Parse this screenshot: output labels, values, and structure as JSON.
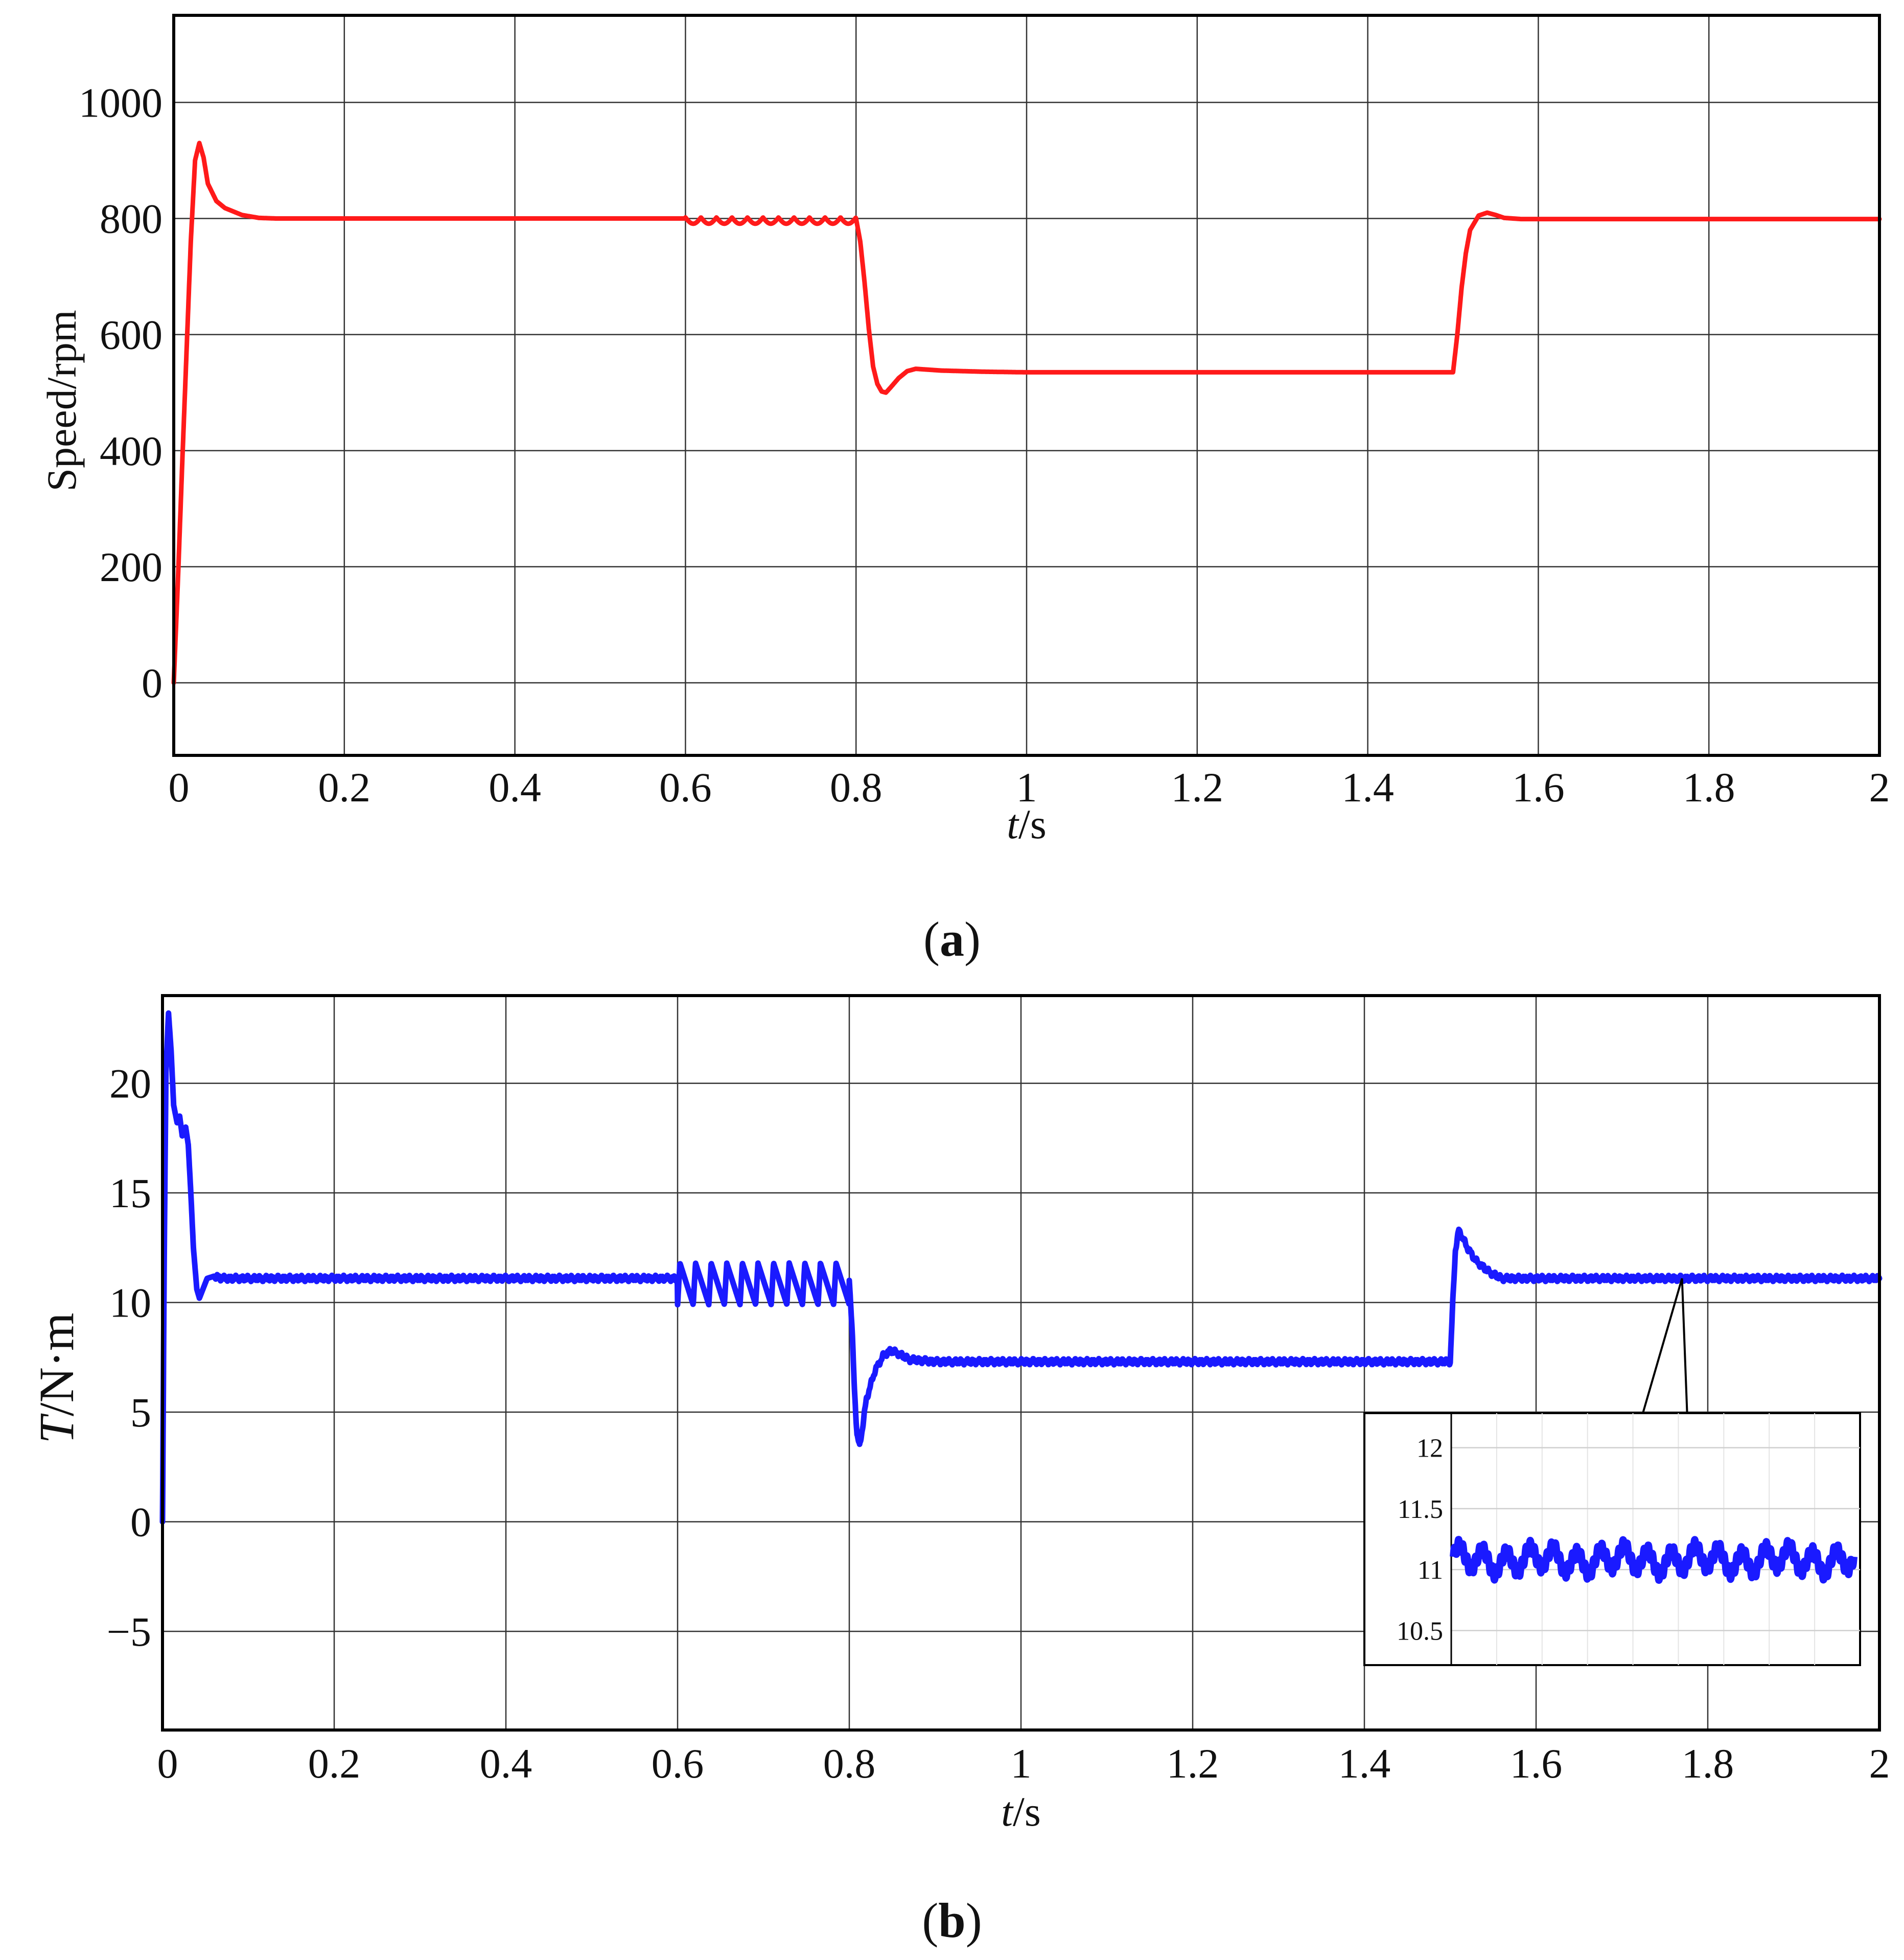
{
  "chart_data": [
    {
      "panel": "a",
      "caption": {
        "open": "(",
        "letter": "a",
        "close": ")"
      },
      "type": "line",
      "xlabel": {
        "italic": "t",
        "rest": "/s"
      },
      "ylabel": "Speed/rpm",
      "xlim": [
        0,
        2
      ],
      "ylim": [
        -125,
        1150
      ],
      "x_ticks": [
        0,
        0.2,
        0.4,
        0.6,
        0.8,
        1,
        1.2,
        1.4,
        1.6,
        1.8,
        2
      ],
      "x_tick_labels": [
        "0",
        "0.2",
        "0.4",
        "0.6",
        "0.8",
        "1",
        "1.2",
        "1.4",
        "1.6",
        "1.8",
        "2"
      ],
      "y_ticks": [
        0,
        200,
        400,
        600,
        800,
        1000
      ],
      "y_tick_labels": [
        "0",
        "200",
        "400",
        "600",
        "800",
        "1000"
      ],
      "grid": true,
      "series": [
        {
          "color": "#ff1a1a",
          "points": [
            [
              0,
              0
            ],
            [
              0.005,
              180
            ],
            [
              0.01,
              380
            ],
            [
              0.015,
              570
            ],
            [
              0.02,
              760
            ],
            [
              0.025,
              900
            ],
            [
              0.03,
              930
            ],
            [
              0.035,
              905
            ],
            [
              0.04,
              860
            ],
            [
              0.05,
              830
            ],
            [
              0.06,
              818
            ],
            [
              0.08,
              806
            ],
            [
              0.1,
              801
            ],
            [
              0.12,
              800
            ],
            [
              0.6,
              800
            ],
            [
              0.8,
              800
            ],
            [
              0.805,
              760
            ],
            [
              0.81,
              690
            ],
            [
              0.815,
              610
            ],
            [
              0.82,
              545
            ],
            [
              0.825,
              515
            ],
            [
              0.83,
              502
            ],
            [
              0.835,
              500
            ],
            [
              0.84,
              508
            ],
            [
              0.85,
              525
            ],
            [
              0.86,
              537
            ],
            [
              0.87,
              541
            ],
            [
              0.9,
              538
            ],
            [
              0.95,
              536
            ],
            [
              1.0,
              535
            ],
            [
              1.5,
              535
            ],
            [
              1.505,
              600
            ],
            [
              1.51,
              680
            ],
            [
              1.515,
              740
            ],
            [
              1.52,
              780
            ],
            [
              1.53,
              805
            ],
            [
              1.54,
              810
            ],
            [
              1.55,
              806
            ],
            [
              1.56,
              801
            ],
            [
              1.58,
              799
            ],
            [
              2.0,
              799
            ]
          ]
        }
      ],
      "oscillation": {
        "x_start": 0.6,
        "x_end": 0.8,
        "cycles": 11,
        "amplitude": 9
      }
    },
    {
      "panel": "b",
      "caption": {
        "open": "(",
        "letter": "b",
        "close": ")"
      },
      "type": "line",
      "xlabel": {
        "italic": "t",
        "rest": "/s"
      },
      "ylabel": {
        "italic": "T",
        "rest": "/N·m"
      },
      "xlim": [
        0,
        2
      ],
      "ylim": [
        -9.5,
        24
      ],
      "x_ticks": [
        0,
        0.2,
        0.4,
        0.6,
        0.8,
        1,
        1.2,
        1.4,
        1.6,
        1.8,
        2
      ],
      "x_tick_labels": [
        "0",
        "0.2",
        "0.4",
        "0.6",
        "0.8",
        "1",
        "1.2",
        "1.4",
        "1.6",
        "1.8",
        "2"
      ],
      "y_ticks": [
        -5,
        0,
        5,
        10,
        15,
        20
      ],
      "y_tick_labels": [
        "−5",
        "0",
        "5",
        "10",
        "15",
        "20"
      ],
      "grid": true,
      "series": [
        {
          "color": "#1a1aff",
          "points": [
            [
              0,
              0
            ],
            [
              0.002,
              12
            ],
            [
              0.004,
              20.5
            ],
            [
              0.007,
              23.2
            ],
            [
              0.01,
              21.5
            ],
            [
              0.013,
              19
            ],
            [
              0.017,
              18.2
            ],
            [
              0.02,
              18.5
            ],
            [
              0.023,
              17.6
            ],
            [
              0.027,
              18
            ],
            [
              0.03,
              17.2
            ],
            [
              0.033,
              15
            ],
            [
              0.036,
              12.5
            ],
            [
              0.04,
              10.6
            ],
            [
              0.043,
              10.2
            ],
            [
              0.047,
              10.6
            ],
            [
              0.052,
              11.1
            ],
            [
              0.06,
              11.2
            ],
            [
              0.07,
              11.1
            ],
            [
              0.6,
              11.1
            ],
            [
              0.8,
              11.1
            ],
            [
              0.803,
              9
            ],
            [
              0.806,
              6
            ],
            [
              0.809,
              4
            ],
            [
              0.812,
              3.4
            ],
            [
              0.815,
              4.2
            ],
            [
              0.82,
              5.6
            ],
            [
              0.83,
              6.9
            ],
            [
              0.84,
              7.6
            ],
            [
              0.848,
              7.8
            ],
            [
              0.856,
              7.7
            ],
            [
              0.87,
              7.4
            ],
            [
              0.9,
              7.3
            ],
            [
              1.5,
              7.3
            ],
            [
              1.503,
              10
            ],
            [
              1.506,
              12.4
            ],
            [
              1.51,
              13.3
            ],
            [
              1.515,
              12.9
            ],
            [
              1.52,
              12.5
            ],
            [
              1.53,
              11.9
            ],
            [
              1.545,
              11.4
            ],
            [
              1.56,
              11.1
            ],
            [
              1.6,
              11.1
            ],
            [
              2.0,
              11.1
            ]
          ]
        }
      ],
      "oscillation": {
        "x_start": 0.6,
        "x_end": 0.8,
        "cycles": 11,
        "high": 11.8,
        "low": 9.9
      },
      "inset": {
        "y_ticks": [
          10.5,
          11,
          11.5,
          12
        ],
        "y_tick_labels": [
          "10.5",
          "11",
          "11.5",
          "12"
        ],
        "ylim": [
          10.3,
          12.2
        ],
        "mean": 11.08,
        "ripple": 0.09,
        "color": "#1a1aff",
        "callout_x": 1.77
      }
    }
  ]
}
